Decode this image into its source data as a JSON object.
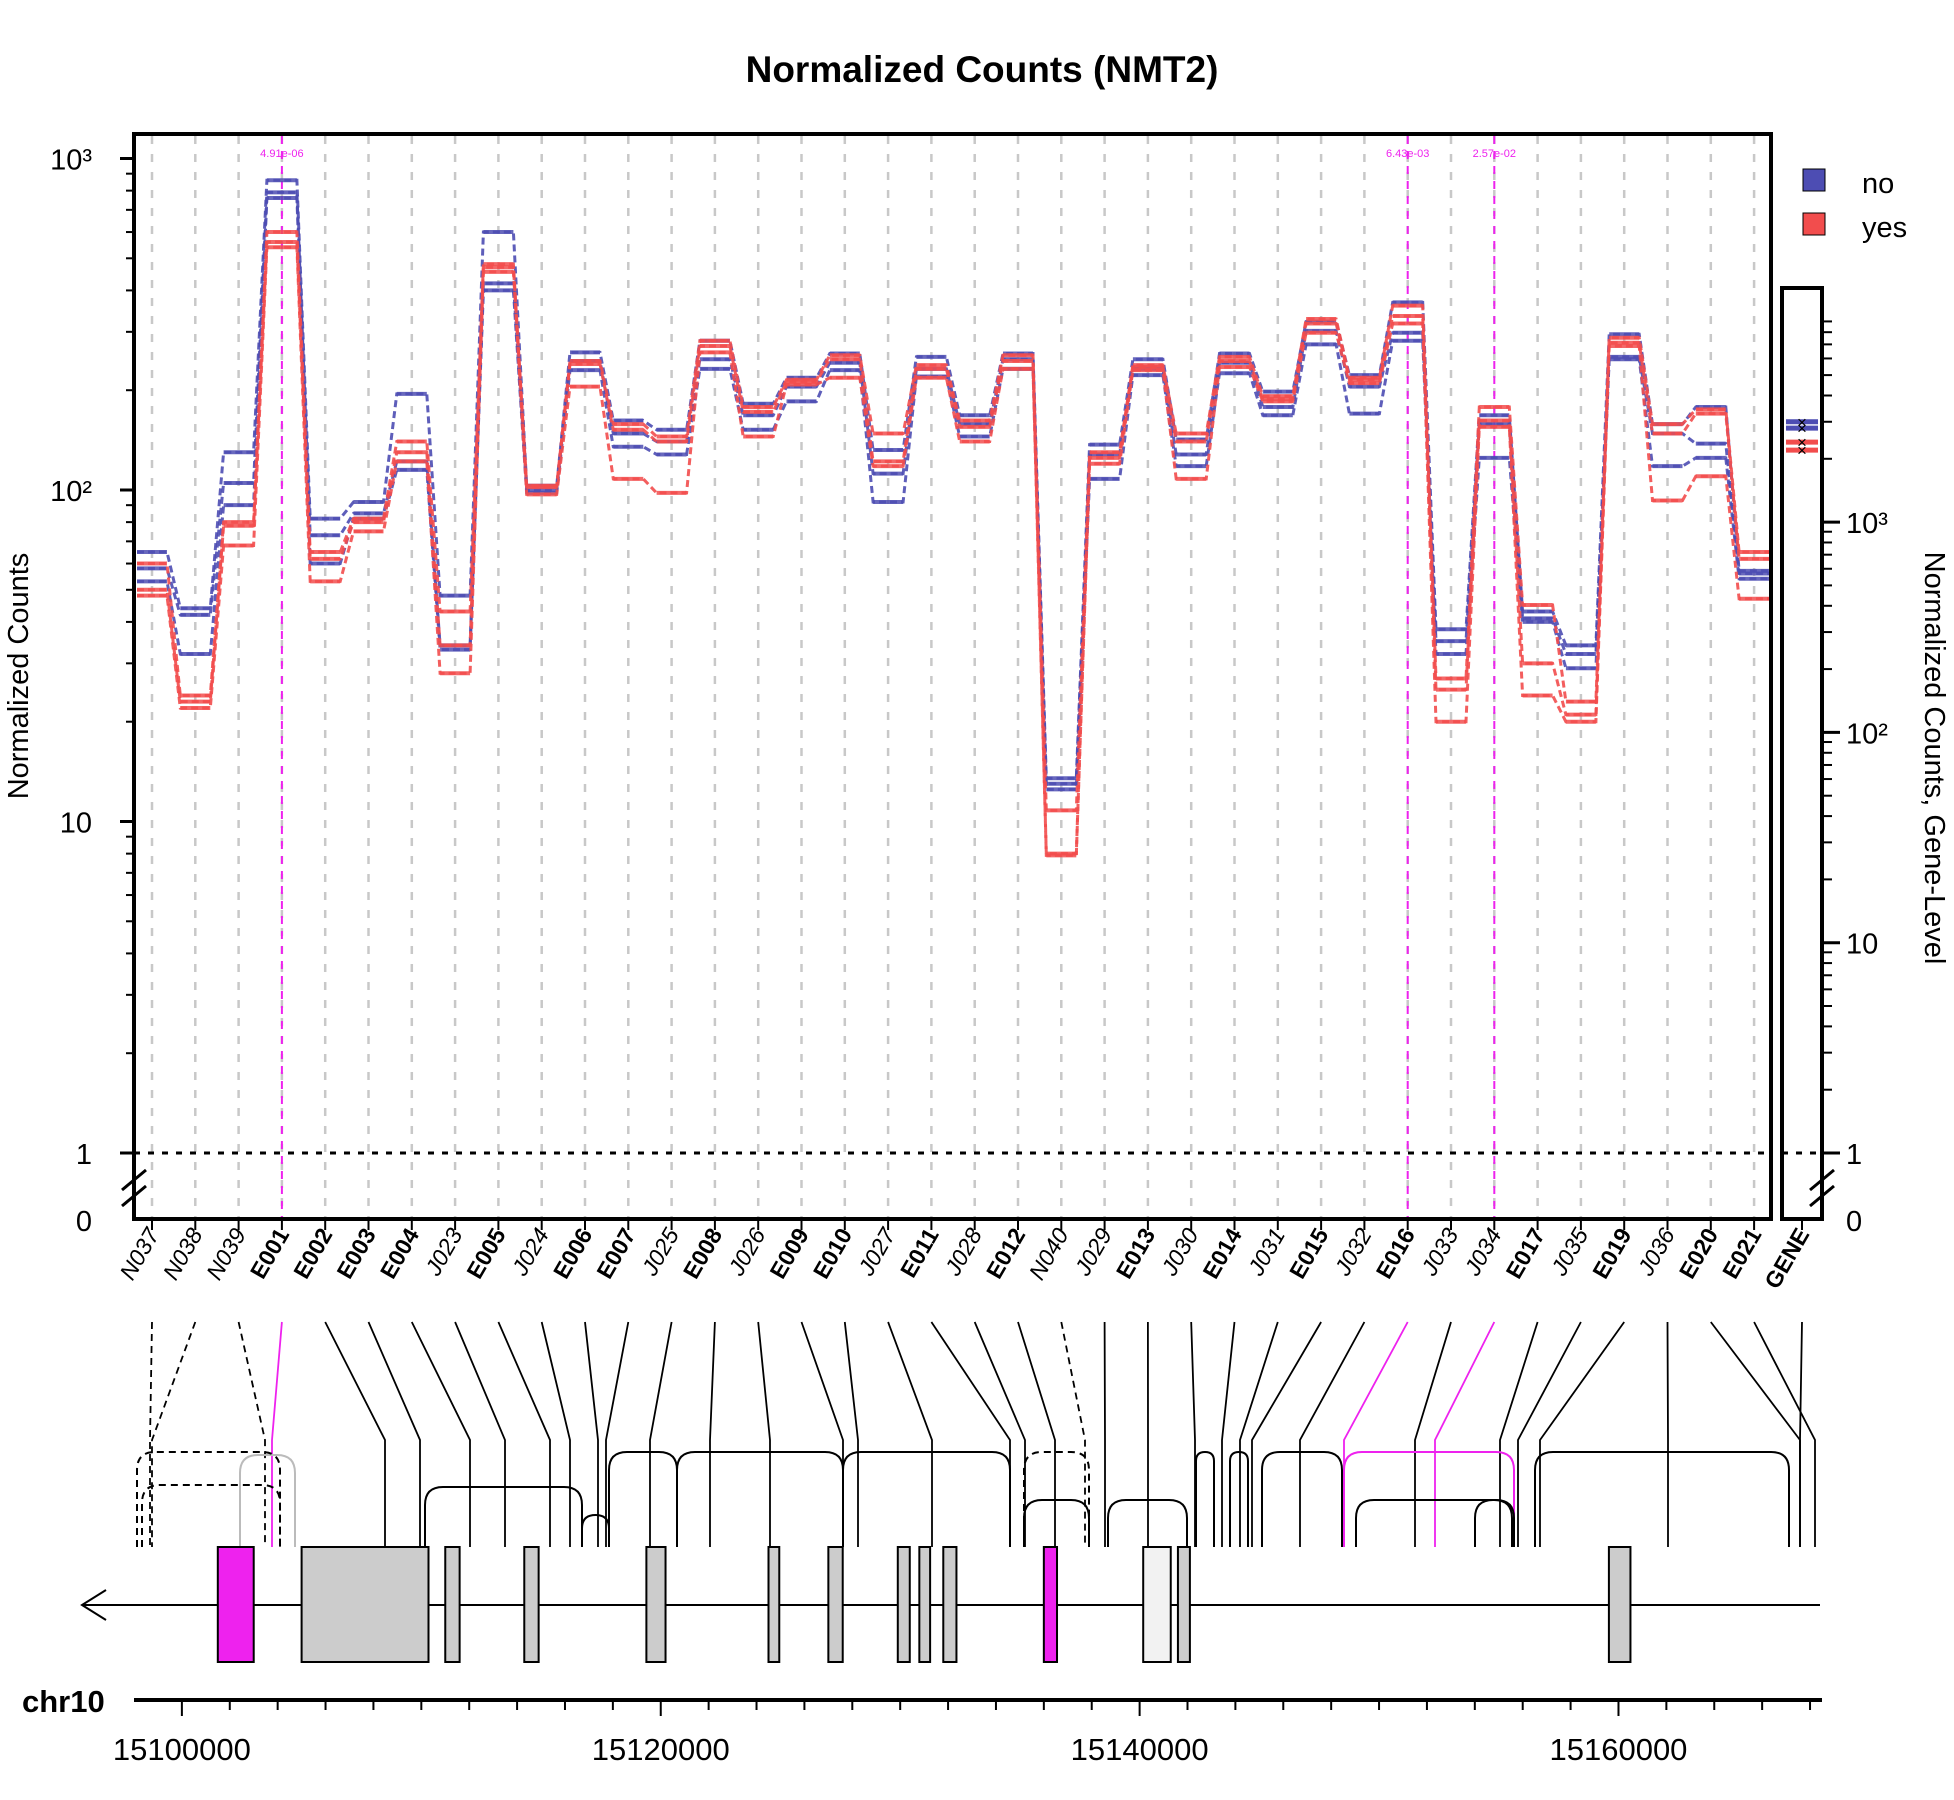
{
  "chart_data": {
    "type": "line",
    "title": "Normalized Counts (NMT2)",
    "ylabel": "Normalized Counts",
    "ylabel_right": "Normalized Counts, Gene-Level",
    "yscale": "log",
    "ylim": [
      0,
      1000
    ],
    "y_ticks": [
      "0",
      "1",
      "10",
      "10²",
      "10³"
    ],
    "gene_y_ticks": [
      "0",
      "1",
      "10",
      "10²",
      "10³"
    ],
    "categories": [
      "N037",
      "N038",
      "N039",
      "E001",
      "E002",
      "E003",
      "E004",
      "J023",
      "E005",
      "J024",
      "E006",
      "E007",
      "J025",
      "E008",
      "J026",
      "E009",
      "E010",
      "J027",
      "E011",
      "J028",
      "E012",
      "N040",
      "J029",
      "E013",
      "J030",
      "E014",
      "J031",
      "E015",
      "J032",
      "E016",
      "J033",
      "J034",
      "E017",
      "J035",
      "E019",
      "J036",
      "E020",
      "E021"
    ],
    "bold_categories": [
      "E001",
      "E002",
      "E003",
      "E004",
      "E005",
      "E006",
      "E007",
      "E008",
      "E009",
      "E010",
      "E011",
      "E012",
      "E013",
      "E014",
      "E015",
      "E016",
      "E017",
      "E019",
      "E020",
      "E021"
    ],
    "highlight_categories": [
      "E001",
      "E016",
      "J034"
    ],
    "highlight_pvalues": [
      "4.91e-06",
      "6.43e-03",
      "2.57e-02"
    ],
    "gene_label": "GENE",
    "legend": {
      "position": "top-right",
      "entries": [
        {
          "name": "no",
          "color": "#4d4db3"
        },
        {
          "name": "yes",
          "color": "#f24d4d"
        }
      ]
    },
    "series": [
      {
        "name": "no",
        "group": "no",
        "values": [
          65,
          44,
          130,
          860,
          82,
          92,
          195,
          48,
          600,
          103,
          260,
          162,
          152,
          282,
          182,
          218,
          258,
          132,
          252,
          168,
          258,
          13.5,
          137,
          248,
          142,
          258,
          198,
          322,
          222,
          368,
          38,
          168,
          43,
          34,
          295,
          158,
          178,
          57
        ]
      },
      {
        "name": "no",
        "group": "no",
        "values": [
          58,
          42,
          105,
          790,
          73,
          85,
          122,
          34,
          420,
          100,
          245,
          148,
          140,
          248,
          168,
          205,
          242,
          112,
          232,
          158,
          248,
          13,
          128,
          232,
          128,
          242,
          178,
          302,
          205,
          298,
          35,
          158,
          41,
          32,
          252,
          148,
          138,
          56
        ]
      },
      {
        "name": "no",
        "group": "no",
        "values": [
          53,
          32,
          90,
          760,
          60,
          82,
          115,
          33,
          400,
          98,
          230,
          135,
          128,
          232,
          152,
          185,
          230,
          92,
          220,
          145,
          232,
          12.5,
          108,
          222,
          118,
          225,
          168,
          275,
          170,
          282,
          32,
          125,
          40,
          29,
          248,
          118,
          125,
          54
        ]
      },
      {
        "name": "yes",
        "group": "yes",
        "values": [
          60,
          24,
          80,
          600,
          65,
          82,
          140,
          43,
          480,
          103,
          245,
          158,
          145,
          282,
          178,
          215,
          255,
          148,
          238,
          162,
          255,
          10.8,
          130,
          238,
          148,
          252,
          192,
          328,
          218,
          360,
          27,
          178,
          45,
          23,
          288,
          158,
          175,
          65
        ]
      },
      {
        "name": "yes",
        "group": "yes",
        "values": [
          50,
          23,
          78,
          560,
          62,
          80,
          130,
          34,
          470,
          102,
          240,
          152,
          140,
          272,
          172,
          212,
          248,
          122,
          232,
          155,
          245,
          8.0,
          125,
          235,
          140,
          245,
          188,
          318,
          215,
          335,
          25,
          162,
          30,
          21,
          278,
          148,
          170,
          62
        ]
      },
      {
        "name": "yes",
        "group": "yes",
        "values": [
          48,
          22,
          68,
          540,
          53,
          75,
          122,
          28,
          455,
          97,
          205,
          108,
          98,
          260,
          145,
          208,
          218,
          118,
          218,
          140,
          232,
          7.9,
          120,
          230,
          108,
          235,
          185,
          298,
          210,
          318,
          20,
          155,
          24,
          20,
          272,
          93,
          110,
          47
        ]
      }
    ],
    "gene_level": {
      "no": [
        3000,
        2800
      ],
      "yes": [
        2400,
        2200
      ]
    },
    "gene_model": {
      "chromosome": "chr10",
      "axis_ticks": [
        "15100000",
        "15120000",
        "15140000",
        "15160000"
      ],
      "range": [
        15098000,
        15168500
      ]
    },
    "colors": {
      "no": "#4d4db3",
      "yes": "#f24d4d",
      "highlight": "#ee22ee",
      "exon": "#cccccc",
      "grid": "#c8c8c8"
    }
  }
}
